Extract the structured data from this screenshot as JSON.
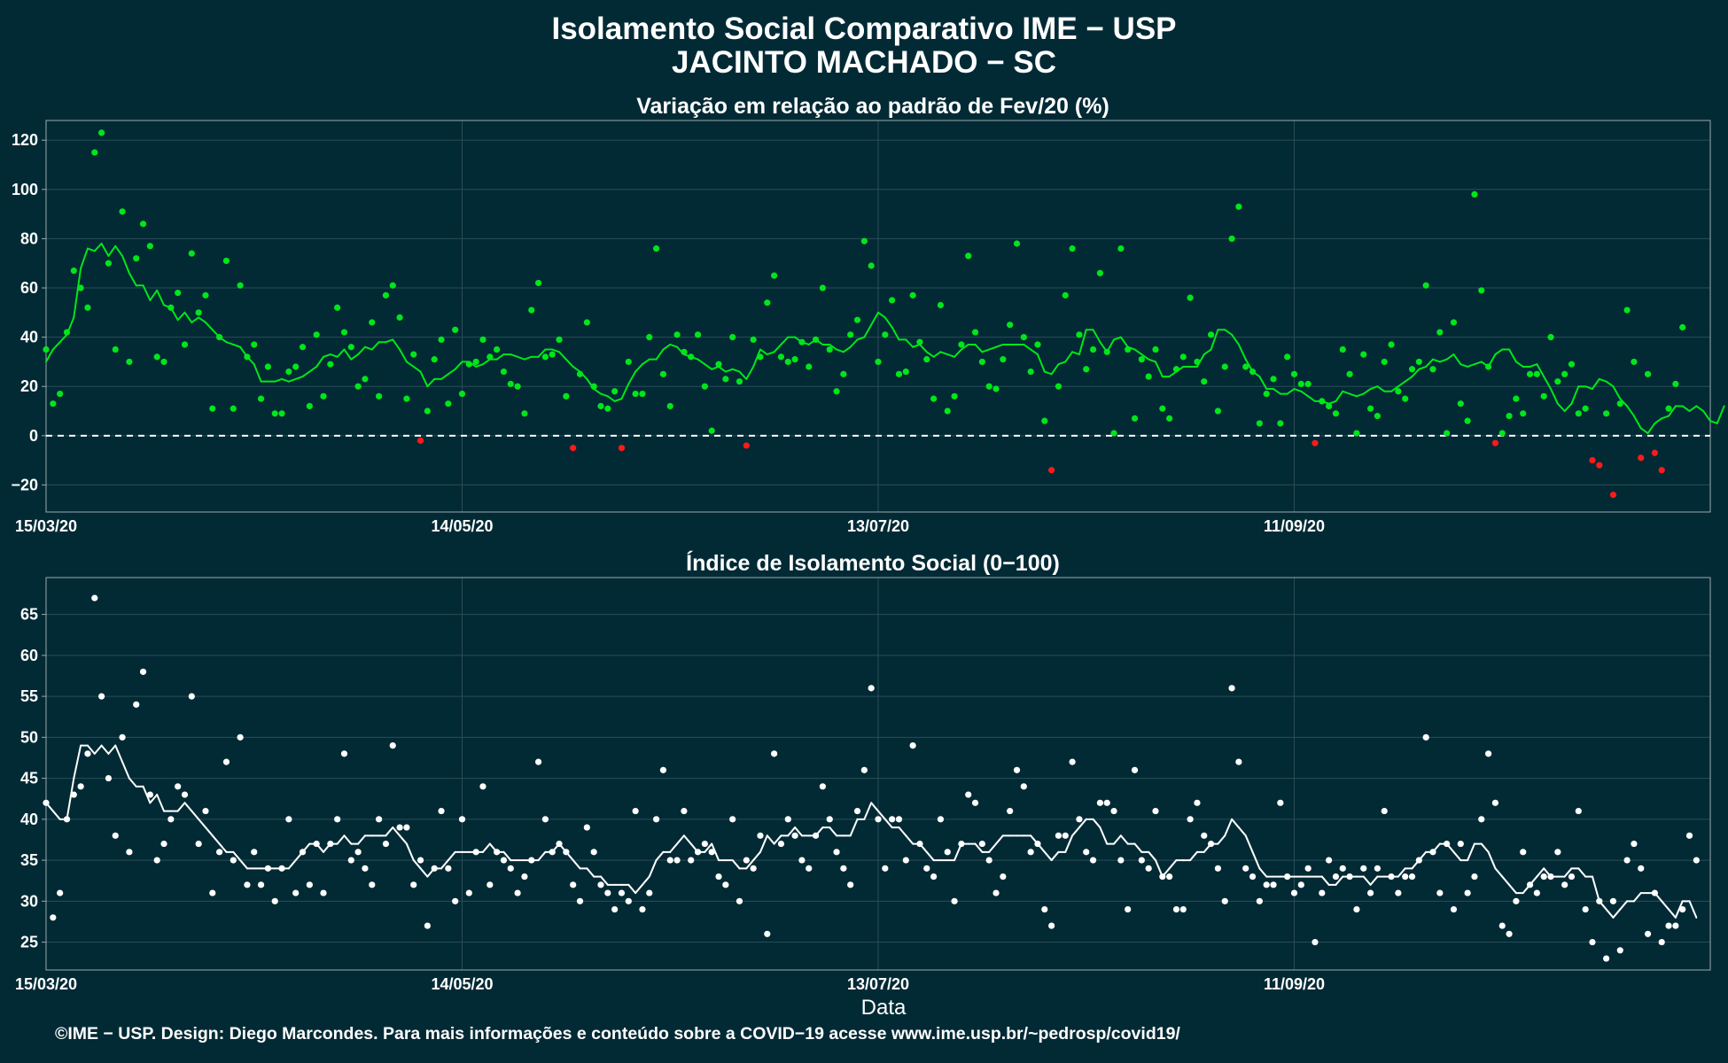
{
  "title": "Isolamento Social Comparativo IME − USP",
  "subtitle": "JACINTO MACHADO − SC",
  "footer": "©IME − USP. Design: Diego Marcondes. Para mais informações e conteúdo sobre a COVID−19 acesse www.ime.usp.br/~pedrosp/covid19/",
  "colors": {
    "background": "#022a35",
    "positive": "#00e61a",
    "negative": "#ff1a1a",
    "index": "#ffffff",
    "grid": "#2b4c57",
    "frame": "#9aa9ad"
  },
  "chart_data": [
    {
      "type": "scatter",
      "title": "Variação em relação ao padrão de Fev/20 (%)",
      "xlabel": "",
      "ylabel": "",
      "x_range": [
        "2020-03-15",
        "2020-11-10"
      ],
      "x_ticks": [
        "15/03/20",
        "14/05/20",
        "13/07/20",
        "11/09/20"
      ],
      "x_tick_dates": [
        "2020-03-15",
        "2020-05-14",
        "2020-07-13",
        "2020-09-11"
      ],
      "ylim": [
        -31,
        128
      ],
      "y_ticks": [
        "−20",
        "0",
        "20",
        "40",
        "60",
        "80",
        "100",
        "120"
      ],
      "y_tick_values": [
        -20,
        0,
        20,
        40,
        60,
        80,
        100,
        120
      ],
      "reference_line": 0,
      "grid": true,
      "series": [
        {
          "kind": "points",
          "values": [
            35,
            13,
            17,
            42,
            67,
            60,
            52,
            115,
            123,
            70,
            35,
            91,
            30,
            72,
            86,
            77,
            32,
            30,
            52,
            58,
            37,
            74,
            50,
            57,
            11,
            40,
            71,
            11,
            61,
            32,
            37,
            15,
            28,
            9,
            9,
            26,
            28,
            36,
            12,
            41,
            16,
            29,
            52,
            42,
            36,
            20,
            23,
            46,
            16,
            57,
            61,
            48,
            15,
            33,
            -2,
            10,
            31,
            39,
            13,
            43,
            17,
            29,
            30,
            39,
            32,
            35,
            26,
            21,
            20,
            9,
            51,
            62,
            32,
            33,
            39,
            16,
            -5,
            25,
            46,
            20,
            12,
            11,
            18,
            -5,
            30,
            17,
            17,
            40,
            76,
            25,
            12,
            41,
            34,
            32,
            41,
            20,
            2,
            29,
            23,
            40,
            22,
            -4,
            39,
            32,
            54,
            65,
            32,
            30,
            31,
            38,
            28,
            39,
            60,
            35,
            18,
            25,
            41,
            47,
            79,
            69,
            30,
            41,
            55,
            25,
            26,
            57,
            38,
            31,
            15,
            53,
            10,
            16,
            37,
            73,
            42,
            30,
            20,
            19,
            31,
            45,
            78,
            40,
            26,
            37,
            6,
            -14,
            20,
            57,
            76,
            41,
            27,
            35,
            66,
            34,
            1,
            76,
            35,
            7,
            31,
            24,
            35,
            11,
            7,
            27,
            32,
            56,
            30,
            22,
            41,
            10,
            28,
            80,
            93,
            28,
            26,
            5,
            17,
            23,
            5,
            32,
            25,
            21,
            21,
            -3,
            14,
            12,
            9,
            35,
            25,
            1,
            33,
            11,
            8,
            30,
            37,
            18,
            15,
            27,
            30,
            61,
            27,
            42,
            1,
            46,
            13,
            6,
            98,
            59,
            28,
            -3,
            1,
            8,
            15,
            9,
            25,
            25,
            16,
            40,
            22,
            25,
            29,
            9,
            11,
            -10,
            -12,
            9,
            -24,
            13,
            51,
            30,
            -9,
            25,
            -7,
            -14,
            11,
            21,
            44
          ]
        },
        {
          "kind": "moving-average",
          "values": [
            30,
            35,
            38,
            41,
            48,
            68,
            76,
            75,
            78,
            73,
            77,
            73,
            66,
            61,
            61,
            55,
            59,
            53,
            52,
            47,
            50,
            46,
            48,
            46,
            43,
            40,
            38,
            37,
            36,
            32,
            29,
            22,
            22,
            22,
            23,
            22,
            23,
            24,
            26,
            28,
            32,
            33,
            32,
            35,
            31,
            33,
            36,
            35,
            38,
            38,
            39,
            35,
            30,
            28,
            26,
            20,
            23,
            23,
            25,
            27,
            30,
            30,
            28,
            29,
            31,
            31,
            33,
            33,
            32,
            31,
            32,
            32,
            35,
            35,
            34,
            31,
            28,
            26,
            23,
            19,
            17,
            16,
            14,
            15,
            21,
            26,
            29,
            31,
            31,
            35,
            37,
            36,
            33,
            32,
            31,
            29,
            27,
            28,
            26,
            27,
            26,
            23,
            28,
            35,
            33,
            34,
            37,
            40,
            40,
            38,
            37,
            39,
            37,
            37,
            35,
            34,
            36,
            39,
            40,
            45,
            50,
            48,
            44,
            39,
            39,
            36,
            37,
            34,
            32,
            34,
            33,
            32,
            35,
            37,
            37,
            34,
            35,
            36,
            37,
            37,
            37,
            37,
            35,
            33,
            26,
            25,
            29,
            30,
            34,
            33,
            43,
            43,
            38,
            34,
            39,
            40,
            36,
            35,
            33,
            31,
            30,
            24,
            24,
            26,
            28,
            28,
            28,
            33,
            35,
            43,
            43,
            41,
            37,
            31,
            26,
            24,
            19,
            19,
            17,
            17,
            19,
            18,
            16,
            14,
            14,
            13,
            14,
            18,
            17,
            16,
            17,
            19,
            20,
            18,
            18,
            20,
            22,
            24,
            27,
            28,
            31,
            30,
            31,
            33,
            29,
            28,
            29,
            30,
            28,
            33,
            35,
            35,
            30,
            28,
            28,
            29,
            24,
            19,
            13,
            10,
            13,
            20,
            20,
            19,
            23,
            22,
            20,
            15,
            12,
            8,
            3,
            1,
            5,
            7,
            8,
            12,
            12,
            10,
            12,
            10,
            6,
            5,
            12
          ]
        }
      ]
    },
    {
      "type": "scatter",
      "title": "Índice de Isolamento Social (0−100)",
      "xlabel": "Data",
      "ylabel": "",
      "x_range": [
        "2020-03-15",
        "2020-11-10"
      ],
      "x_ticks": [
        "15/03/20",
        "14/05/20",
        "13/07/20",
        "11/09/20"
      ],
      "x_tick_dates": [
        "2020-03-15",
        "2020-05-14",
        "2020-07-13",
        "2020-09-11"
      ],
      "ylim": [
        21.6,
        69.5
      ],
      "y_ticks": [
        "25",
        "30",
        "35",
        "40",
        "45",
        "50",
        "55",
        "60",
        "65"
      ],
      "y_tick_values": [
        25,
        30,
        35,
        40,
        45,
        50,
        55,
        60,
        65
      ],
      "grid": true,
      "series": [
        {
          "kind": "points",
          "values": [
            42,
            28,
            31,
            40,
            43,
            44,
            48,
            67,
            55,
            45,
            38,
            50,
            36,
            54,
            58,
            43,
            35,
            37,
            40,
            44,
            43,
            55,
            37,
            41,
            31,
            36,
            47,
            35,
            50,
            32,
            36,
            32,
            34,
            30,
            34,
            40,
            31,
            36,
            32,
            37,
            31,
            37,
            40,
            48,
            35,
            36,
            34,
            32,
            40,
            37,
            49,
            39,
            39,
            32,
            35,
            27,
            34,
            41,
            34,
            30,
            40,
            31,
            36,
            44,
            32,
            36,
            35,
            34,
            31,
            33,
            35,
            47,
            40,
            36,
            37,
            36,
            32,
            30,
            39,
            36,
            32,
            31,
            29,
            31,
            30,
            41,
            29,
            31,
            40,
            46,
            35,
            35,
            41,
            35,
            36,
            37,
            36,
            33,
            32,
            40,
            30,
            35,
            34,
            38,
            26,
            48,
            37,
            40,
            38,
            35,
            34,
            38,
            44,
            40,
            36,
            34,
            32,
            41,
            46,
            56,
            40,
            34,
            40,
            40,
            35,
            49,
            37,
            34,
            33,
            40,
            36,
            30,
            37,
            43,
            42,
            37,
            35,
            31,
            33,
            41,
            46,
            44,
            36,
            37,
            29,
            27,
            38,
            38,
            47,
            40,
            36,
            35,
            42,
            42,
            41,
            35,
            29,
            46,
            35,
            34,
            41,
            33,
            33,
            29,
            29,
            40,
            42,
            38,
            37,
            34,
            30,
            56,
            47,
            34,
            33,
            30,
            32,
            32,
            42,
            33,
            31,
            32,
            34,
            25,
            31,
            35,
            33,
            34,
            33,
            29,
            34,
            31,
            34,
            41,
            33,
            31,
            33,
            33,
            35,
            50,
            36,
            31,
            37,
            29,
            37,
            31,
            33,
            40,
            48,
            42,
            27,
            26,
            30,
            36,
            32,
            31,
            33,
            33,
            36,
            32,
            33,
            41,
            29,
            25,
            30,
            23,
            30,
            24,
            35,
            37,
            34,
            26,
            31,
            25,
            27,
            27,
            29,
            38,
            35
          ]
        },
        {
          "kind": "moving-average",
          "values": [
            42,
            41,
            40,
            40,
            45,
            49,
            49,
            48,
            49,
            48,
            49,
            47,
            45,
            44,
            44,
            42,
            43,
            41,
            41,
            41,
            42,
            41,
            40,
            39,
            38,
            37,
            36,
            36,
            35,
            34,
            34,
            34,
            34,
            34,
            34,
            34,
            35,
            36,
            37,
            37,
            36,
            37,
            37,
            38,
            37,
            37,
            38,
            38,
            38,
            38,
            39,
            38,
            37,
            35,
            34,
            33,
            34,
            34,
            35,
            36,
            36,
            36,
            36,
            36,
            37,
            36,
            36,
            35,
            35,
            35,
            35,
            35,
            36,
            36,
            37,
            36,
            35,
            34,
            34,
            33,
            33,
            32,
            32,
            32,
            32,
            31,
            32,
            33,
            35,
            36,
            36,
            37,
            38,
            37,
            36,
            36,
            37,
            35,
            35,
            35,
            34,
            34,
            35,
            36,
            38,
            37,
            38,
            38,
            39,
            38,
            38,
            38,
            39,
            39,
            38,
            38,
            38,
            40,
            40,
            42,
            41,
            40,
            39,
            39,
            38,
            37,
            37,
            36,
            35,
            35,
            35,
            35,
            37,
            37,
            37,
            36,
            36,
            37,
            38,
            38,
            38,
            38,
            38,
            37,
            36,
            35,
            36,
            36,
            38,
            39,
            40,
            40,
            39,
            37,
            37,
            38,
            37,
            37,
            36,
            36,
            35,
            33,
            34,
            35,
            35,
            35,
            36,
            36,
            37,
            37,
            38,
            40,
            39,
            38,
            36,
            34,
            33,
            33,
            33,
            33,
            33,
            33,
            33,
            33,
            33,
            32,
            32,
            33,
            33,
            33,
            33,
            32,
            33,
            33,
            33,
            33,
            34,
            34,
            35,
            36,
            36,
            37,
            37,
            36,
            35,
            35,
            37,
            37,
            36,
            34,
            33,
            32,
            31,
            31,
            32,
            33,
            34,
            33,
            33,
            33,
            34,
            34,
            33,
            33,
            30,
            29,
            28,
            29,
            30,
            30,
            31,
            31,
            31,
            30,
            29,
            28,
            30,
            30,
            28
          ]
        }
      ]
    }
  ]
}
